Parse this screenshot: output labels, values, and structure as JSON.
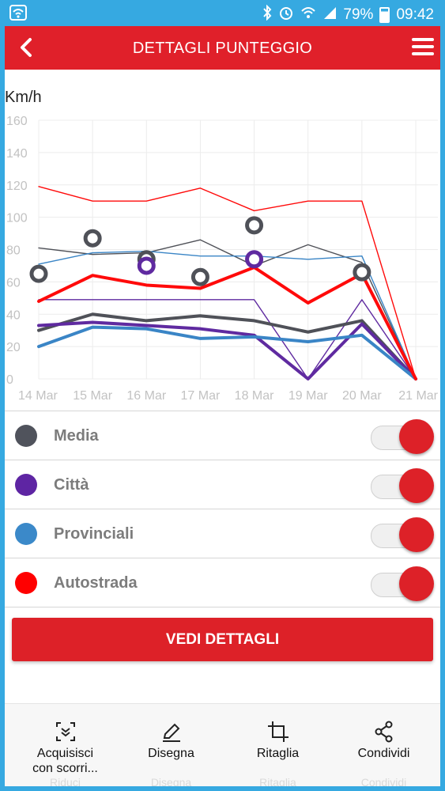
{
  "status_bar": {
    "battery": "79%",
    "time": "09:42",
    "icons": [
      "wifi-icon",
      "bluetooth-icon",
      "alarm-icon",
      "signal-icon",
      "battery-icon"
    ]
  },
  "app_bar": {
    "title": "DETTAGLI PUNTEGGIO",
    "back_icon": "‹",
    "menu_icon": "hamburger-menu-icon"
  },
  "chart_data": {
    "type": "line",
    "ylabel": "Km/h",
    "xlabel": "",
    "ylim": [
      0,
      160
    ],
    "yticks": [
      0,
      20,
      40,
      60,
      80,
      100,
      120,
      140,
      160
    ],
    "categories": [
      "14 Mar",
      "15 Mar",
      "16 Mar",
      "17 Mar",
      "18 Mar",
      "19 Mar",
      "20 Mar",
      "21 Mar"
    ],
    "grid": true,
    "series": [
      {
        "name": "Media",
        "color": "#4f5158",
        "style": "thick",
        "values": [
          30,
          40,
          36,
          39,
          36,
          29,
          36,
          0
        ]
      },
      {
        "name": "Città",
        "color": "#5f2aa0",
        "style": "thick",
        "values": [
          33,
          35,
          33,
          31,
          27,
          0,
          34,
          0
        ]
      },
      {
        "name": "Provinciali",
        "color": "#3a85c6",
        "style": "thick",
        "values": [
          20,
          32,
          31,
          25,
          26,
          23,
          27,
          0
        ]
      },
      {
        "name": "Autostrada",
        "color": "#ff0a0a",
        "style": "thick",
        "values": [
          48,
          64,
          58,
          56,
          69,
          47,
          65,
          0
        ]
      },
      {
        "name": "Media",
        "color": "#4f5158",
        "style": "thin",
        "values": [
          81,
          77,
          78,
          86,
          70,
          83,
          72,
          0
        ]
      },
      {
        "name": "Città",
        "color": "#5f2aa0",
        "style": "thin",
        "values": [
          49,
          49,
          49,
          49,
          49,
          0,
          49,
          0
        ]
      },
      {
        "name": "Provinciali",
        "color": "#3a85c6",
        "style": "thin",
        "values": [
          71,
          78,
          79,
          76,
          76,
          74,
          76,
          0
        ]
      },
      {
        "name": "Autostrada",
        "color": "#ff0a0a",
        "style": "thin",
        "values": [
          119,
          110,
          110,
          118,
          104,
          110,
          110,
          0
        ]
      }
    ],
    "markers": [
      {
        "x": "14 Mar",
        "y": 65,
        "color": "#4f5158"
      },
      {
        "x": "15 Mar",
        "y": 87,
        "color": "#4f5158"
      },
      {
        "x": "16 Mar",
        "y": 74,
        "color": "#4f5158"
      },
      {
        "x": "16 Mar",
        "y": 70,
        "color": "#5f2aa0"
      },
      {
        "x": "17 Mar",
        "y": 63,
        "color": "#4f5158"
      },
      {
        "x": "18 Mar",
        "y": 95,
        "color": "#4f5158"
      },
      {
        "x": "18 Mar",
        "y": 74,
        "color": "#5f2aa0"
      },
      {
        "x": "20 Mar",
        "y": 66,
        "color": "#4f5158"
      }
    ]
  },
  "legend": [
    {
      "label": "Media",
      "color": "#50535c",
      "enabled": true
    },
    {
      "label": "Città",
      "color": "#5e25a3",
      "enabled": true
    },
    {
      "label": "Provinciali",
      "color": "#3b89c9",
      "enabled": true
    },
    {
      "label": "Autostrada",
      "color": "#ff0000",
      "enabled": true
    }
  ],
  "details_button": {
    "label": "VEDI DETTAGLI"
  },
  "bottom_toolbar": [
    {
      "icon": "scroll-capture-icon",
      "label": "Acquisisci\ncon scorri...",
      "ghost": "Riduci"
    },
    {
      "icon": "pen-icon",
      "label": "Disegna",
      "ghost": "Disegna"
    },
    {
      "icon": "crop-icon",
      "label": "Ritaglia",
      "ghost": "Ritaglia"
    },
    {
      "icon": "share-icon",
      "label": "Condividi",
      "ghost": "Condividi"
    }
  ]
}
